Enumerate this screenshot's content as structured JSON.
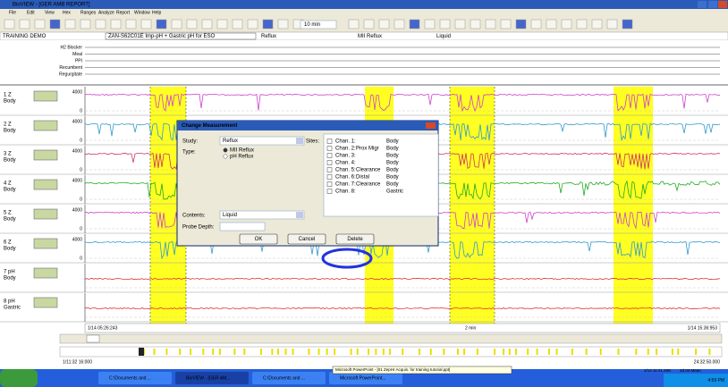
{
  "window": {
    "title": "BioVIEW - [GER AMB REPORT]",
    "menu": [
      "File",
      "Edit",
      "View",
      "Hex",
      "Ranges",
      "Analyze",
      "Report",
      "Window",
      "Help"
    ],
    "zoom": "10 min"
  },
  "header": {
    "patient": "TRAINING DEMO",
    "protocol": "ZAN-S62C01E  Imp-pH + Gastric pH for ESO",
    "study": "Reflux",
    "type": "MII Reflux",
    "contents": "Liquid"
  },
  "events": [
    "H2 Blocker",
    "Meal",
    "PPI",
    "Recumbent",
    "Regurgitate"
  ],
  "channels": [
    {
      "name": "1 Z",
      "site": "Body",
      "top": 4000,
      "bottom": 0
    },
    {
      "name": "2 Z",
      "site": "Body",
      "top": 4000,
      "bottom": 0
    },
    {
      "name": "3 Z",
      "site": "Body",
      "top": 4000,
      "bottom": 0
    },
    {
      "name": "4 Z",
      "site": "Body",
      "top": 4000,
      "bottom": 0
    },
    {
      "name": "5 Z",
      "site": "Body",
      "top": 4000,
      "bottom": 0
    },
    {
      "name": "6 Z",
      "site": "Body",
      "top": 4000,
      "bottom": 0
    },
    {
      "name": "7 pH",
      "site": "Body"
    },
    {
      "name": "8 pH",
      "site": "Gastric"
    }
  ],
  "dialog": {
    "title": "Change Measurement",
    "study_label": "Study:",
    "study": "Reflux",
    "type_label": "Type:",
    "types": [
      "MII Reflux",
      "pH Reflux"
    ],
    "sites_label": "Sites:",
    "sites": [
      {
        "name": "Chan. 1:",
        "site": "Body"
      },
      {
        "name": "Chan. 2:",
        "role": "Prox Migr",
        "site": "Body"
      },
      {
        "name": "Chan. 3:",
        "site": "Body"
      },
      {
        "name": "Chan. 4:",
        "site": "Body"
      },
      {
        "name": "Chan. 5:",
        "role": "Clearance",
        "site": "Body"
      },
      {
        "name": "Chan. 6:",
        "role": "Distal",
        "site": "Body"
      },
      {
        "name": "Chan. 7:",
        "role": "Clearance",
        "site": "Body"
      },
      {
        "name": "Chan. 8:",
        "site": "Gastric"
      }
    ],
    "contents_label": "Contents:",
    "contents": "Liquid",
    "depth_label": "Probe Depth:",
    "buttons": [
      "OK",
      "Cancel",
      "Delete"
    ]
  },
  "timebar": {
    "start": "1/14 05:26:243",
    "span": "2 min",
    "end": "1/14 15:36:953"
  },
  "overview": {
    "start": "1/11:32 16:000",
    "end": "24:32:50.000"
  },
  "taskbar": {
    "items": [
      "C:\\Documents and ...",
      "BioVIEW - [GER AM...",
      "C:\\Documents and ...",
      "Microsoft PowerPoint..."
    ],
    "tooltip": "Microsoft PowerPoint - [01 ZepHr Acquis. for training tutorial.ppt]",
    "status": [
      "1/14 11:21.469",
      "3d 04 Mean"
    ],
    "clock": "4:59 PM"
  }
}
